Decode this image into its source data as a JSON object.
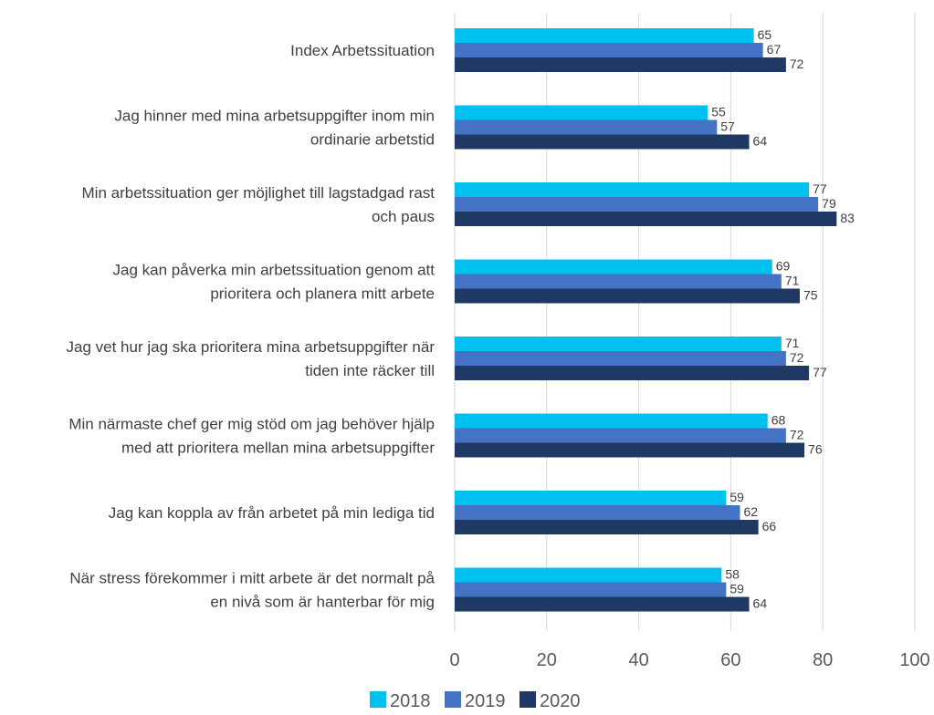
{
  "chart_data": {
    "type": "bar",
    "orientation": "horizontal",
    "categories": [
      [
        "Index Arbetssituation"
      ],
      [
        "Jag hinner med mina arbetsuppgifter inom min",
        "ordinarie arbetstid"
      ],
      [
        "Min arbetssituation ger möjlighet till lagstadgad rast",
        "och paus"
      ],
      [
        "Jag kan påverka min arbetssituation genom att",
        "prioritera och planera mitt arbete"
      ],
      [
        "Jag vet hur jag ska prioritera mina arbetsuppgifter när",
        "tiden inte räcker till"
      ],
      [
        "Min närmaste chef ger mig stöd om jag behöver hjälp",
        "med att prioritera mellan mina arbetsuppgifter"
      ],
      [
        "Jag kan koppla av från arbetet på min lediga tid"
      ],
      [
        "När stress förekommer i mitt arbete är det normalt på",
        "en nivå som är hanterbar för mig"
      ]
    ],
    "series": [
      {
        "name": "2018",
        "color": "#00C0EF",
        "values": [
          65,
          55,
          77,
          69,
          71,
          68,
          59,
          58
        ]
      },
      {
        "name": "2019",
        "color": "#4472C4",
        "values": [
          67,
          57,
          79,
          71,
          72,
          72,
          62,
          59
        ]
      },
      {
        "name": "2020",
        "color": "#203864",
        "values": [
          72,
          64,
          83,
          75,
          77,
          76,
          66,
          64
        ]
      }
    ],
    "xlim": [
      0,
      100
    ],
    "xticks": [
      "0",
      "20",
      "40",
      "60",
      "80",
      "100"
    ],
    "grid": true,
    "data_labels": true,
    "legend_position": "bottom"
  }
}
